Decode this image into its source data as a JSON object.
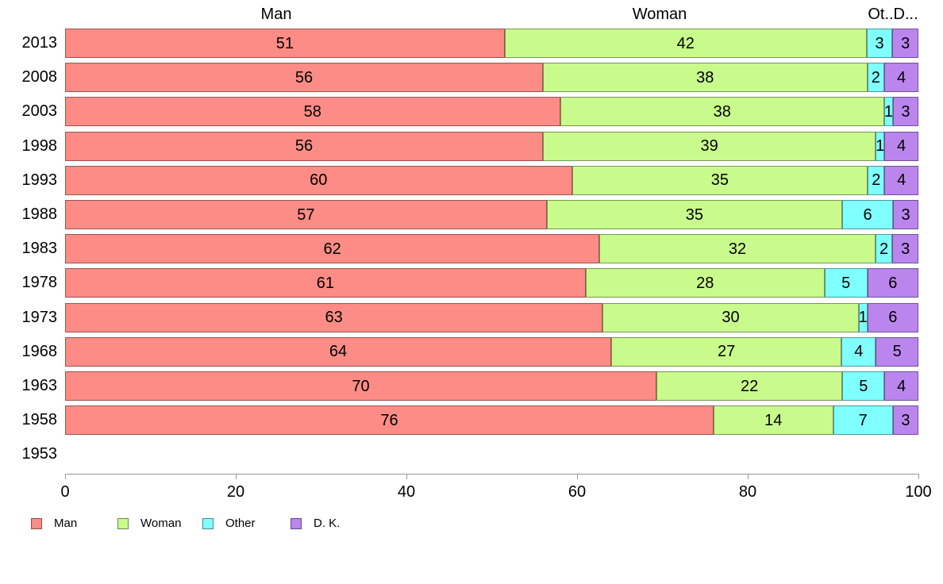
{
  "chart_data": {
    "type": "bar",
    "orientation": "horizontal",
    "stacked": true,
    "title": "",
    "column_headers": [
      "Man",
      "Woman",
      "Ot..D..."
    ],
    "categories": [
      "2013",
      "2008",
      "2003",
      "1998",
      "1993",
      "1988",
      "1983",
      "1978",
      "1973",
      "1968",
      "1963",
      "1958",
      "1953"
    ],
    "series": [
      {
        "name": "Man",
        "color": "#FC8C85",
        "values": [
          51,
          56,
          58,
          56,
          60,
          57,
          62,
          61,
          63,
          64,
          70,
          76,
          null
        ]
      },
      {
        "name": "Woman",
        "color": "#C9FA8C",
        "values": [
          42,
          38,
          38,
          39,
          35,
          35,
          32,
          28,
          30,
          27,
          22,
          14,
          null
        ]
      },
      {
        "name": "Other",
        "color": "#80FFFF",
        "values": [
          3,
          2,
          1,
          1,
          2,
          6,
          2,
          5,
          1,
          4,
          5,
          7,
          null
        ]
      },
      {
        "name": "D. K.",
        "color": "#BA86EE",
        "values": [
          3,
          4,
          3,
          4,
          4,
          3,
          3,
          6,
          6,
          5,
          4,
          3,
          null
        ]
      }
    ],
    "x_ticks": [
      "0",
      "20",
      "40",
      "60",
      "80",
      "100"
    ],
    "xlim": [
      0,
      100
    ],
    "grid": false,
    "legend": [
      "Man",
      "Woman",
      "Other",
      "D. K."
    ],
    "legend_position": "bottom-left"
  }
}
